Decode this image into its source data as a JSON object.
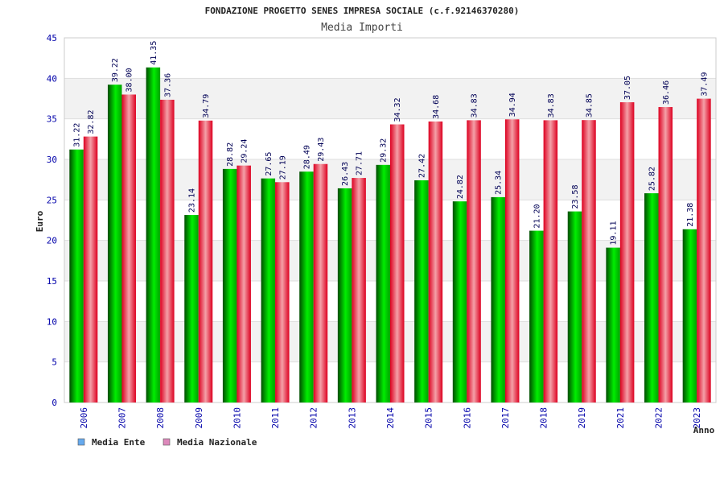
{
  "chart_data": {
    "type": "bar",
    "title": "FONDAZIONE PROGETTO SENES IMPRESA SOCIALE (c.f.92146370280)",
    "subtitle": "Media Importi",
    "xlabel": "Anno",
    "ylabel": "Euro",
    "ylim": [
      0,
      45
    ],
    "yticks": [
      0,
      5,
      10,
      15,
      20,
      25,
      30,
      35,
      40,
      45
    ],
    "ytick_labels": [
      "0",
      "5",
      "10",
      "15",
      "20",
      "25",
      "30",
      "35",
      "40",
      "45"
    ],
    "categories": [
      "2006",
      "2007",
      "2008",
      "2009",
      "2010",
      "2011",
      "2012",
      "2013",
      "2014",
      "2015",
      "2016",
      "2017",
      "2018",
      "2019",
      "2021",
      "2022",
      "2023"
    ],
    "series": [
      {
        "name": "Media Ente",
        "color": "#00aa00",
        "legend_color": "#66aaee",
        "values": [
          31.22,
          39.22,
          41.35,
          23.14,
          28.82,
          27.65,
          28.49,
          26.43,
          29.32,
          27.42,
          24.82,
          25.34,
          21.2,
          23.58,
          19.11,
          25.82,
          21.38
        ],
        "labels": [
          "31.22",
          "39.22",
          "41.35",
          "23.14",
          "28.82",
          "27.65",
          "28.49",
          "26.43",
          "29.32",
          "27.42",
          "24.82",
          "25.34",
          "21.20",
          "23.58",
          "19.11",
          "25.82",
          "21.38"
        ]
      },
      {
        "name": "Media Nazionale",
        "color": "#dd2233",
        "legend_color": "#dd88bb",
        "values": [
          32.82,
          38.0,
          37.36,
          34.79,
          29.24,
          27.19,
          29.43,
          27.71,
          34.32,
          34.68,
          34.83,
          34.94,
          34.83,
          34.85,
          37.05,
          36.46,
          37.49
        ],
        "labels": [
          "32.82",
          "38.00",
          "37.36",
          "34.79",
          "29.24",
          "27.19",
          "29.43",
          "27.71",
          "34.32",
          "34.68",
          "34.83",
          "34.94",
          "34.83",
          "34.85",
          "37.05",
          "36.46",
          "37.49"
        ]
      }
    ],
    "grid": true,
    "legend_position": "bottom-left"
  }
}
